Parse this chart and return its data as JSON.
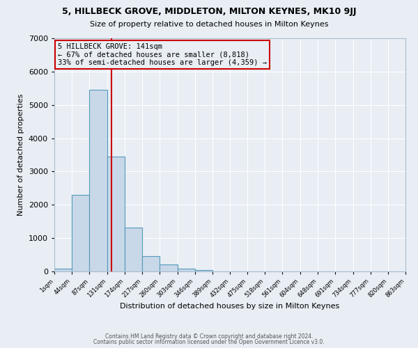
{
  "title1": "5, HILLBECK GROVE, MIDDLETON, MILTON KEYNES, MK10 9JJ",
  "title2": "Size of property relative to detached houses in Milton Keynes",
  "xlabel": "Distribution of detached houses by size in Milton Keynes",
  "ylabel": "Number of detached properties",
  "bar_color": "#c8d8e8",
  "bar_edge_color": "#5599bb",
  "bg_color": "#e8eef4",
  "grid_color": "white",
  "annotation_box_color": "#cc0000",
  "vline_color": "#cc0000",
  "property_value": 141,
  "bin_edges": [
    1,
    44,
    87,
    131,
    174,
    217,
    260,
    303,
    346,
    389,
    432,
    475,
    518,
    561,
    604,
    648,
    691,
    734,
    777,
    820,
    863
  ],
  "bin_counts": [
    75,
    2300,
    5450,
    3450,
    1310,
    450,
    200,
    90,
    35,
    0,
    0,
    0,
    0,
    0,
    0,
    0,
    0,
    0,
    0,
    0
  ],
  "annotation_text": "5 HILLBECK GROVE: 141sqm\n← 67% of detached houses are smaller (8,818)\n33% of semi-detached houses are larger (4,359) →",
  "footer1": "Contains HM Land Registry data © Crown copyright and database right 2024.",
  "footer2": "Contains public sector information licensed under the Open Government Licence v3.0.",
  "ylim": [
    0,
    7000
  ],
  "xlim_min": 1,
  "xlim_max": 863
}
